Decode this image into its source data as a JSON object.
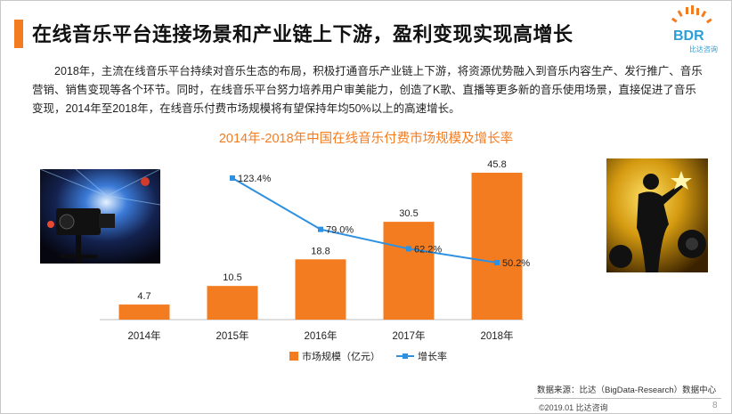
{
  "title": "在线音乐平台连接场景和产业链上下游，盈利变现实现高增长",
  "logo": {
    "text": "BDR",
    "sub": "比达咨询"
  },
  "intro": "2018年，主流在线音乐平台持续对音乐生态的布局，积极打通音乐产业链上下游，将资源优势融入到音乐内容生产、发行推广、音乐营销、销售变现等各个环节。同时，在线音乐平台努力培养用户审美能力，创造了K歌、直播等更多新的音乐使用场景，直接促进了音乐变现，2014年至2018年，在线音乐付费市场规模将有望保持年均50%以上的高速增长。",
  "chart_data": {
    "type": "bar",
    "title": "2014年-2018年中国在线音乐付费市场规模及增长率",
    "categories": [
      "2014年",
      "2015年",
      "2016年",
      "2017年",
      "2018年"
    ],
    "series": [
      {
        "name": "市场规模（亿元）",
        "type": "bar",
        "color": "#f47c20",
        "values": [
          4.7,
          10.5,
          18.8,
          30.5,
          45.8
        ],
        "labels": [
          "4.7",
          "10.5",
          "18.8",
          "30.5",
          "45.8"
        ]
      },
      {
        "name": "增长率",
        "type": "line",
        "color": "#2e90e0",
        "values": [
          null,
          123.4,
          79.0,
          62.2,
          50.2
        ],
        "labels": [
          "",
          "123.4%",
          "79.0%",
          "62.2%",
          "50.2%"
        ]
      }
    ],
    "legend_position": "bottom",
    "grid": false
  },
  "source": "数据来源：比达（BigData-Research）数据中心",
  "copyright": "©2019.01 比达咨询",
  "page_number": "8"
}
